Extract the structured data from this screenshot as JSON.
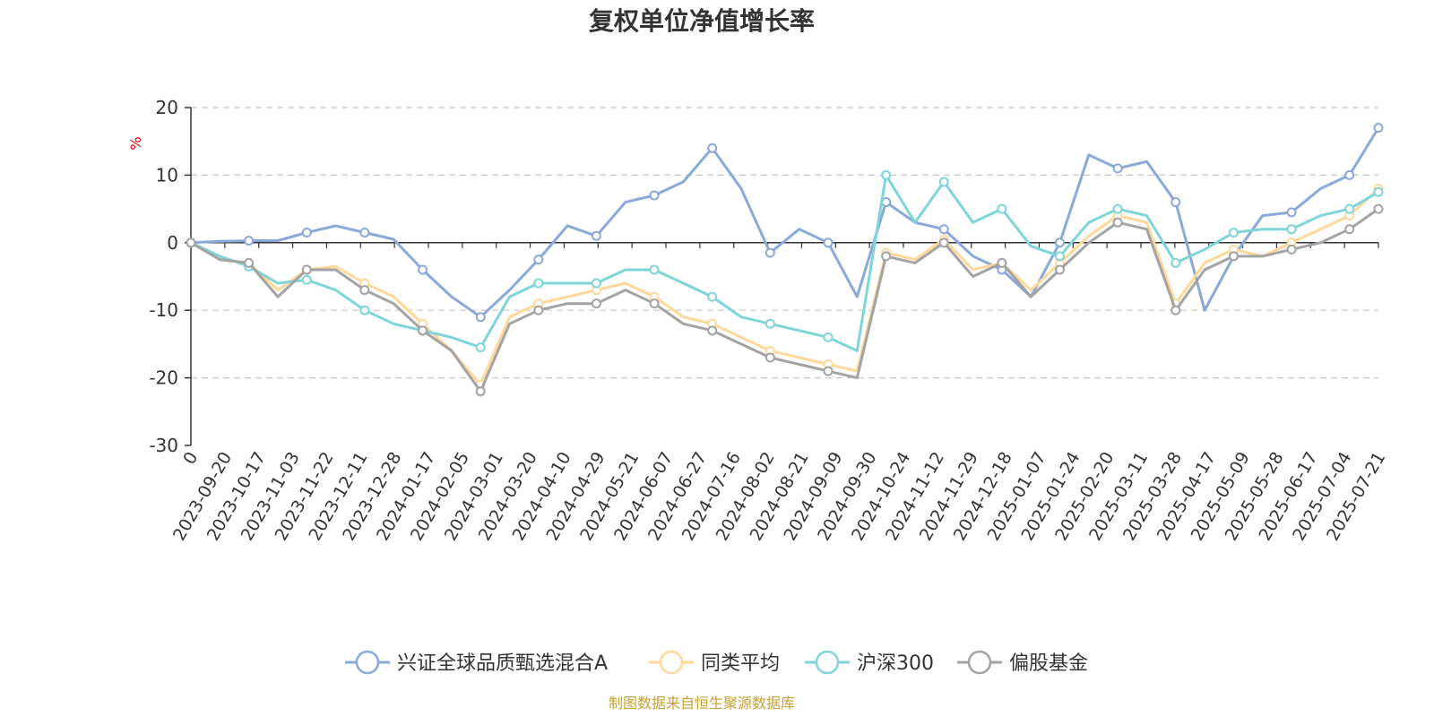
{
  "chart_data": {
    "type": "line",
    "title": "复权单位净值增长率",
    "ylabel": "%",
    "ylim": [
      -30,
      20
    ],
    "yticks": [
      -30,
      -20,
      -10,
      0,
      10,
      20
    ],
    "x_tick_labels": [
      "0",
      "2023-09-20",
      "2023-10-17",
      "2023-11-03",
      "2023-11-22",
      "2023-12-11",
      "2023-12-28",
      "2024-01-17",
      "2024-02-05",
      "2024-03-01",
      "2024-03-20",
      "2024-04-10",
      "2024-04-29",
      "2024-05-21",
      "2024-06-07",
      "2024-06-27",
      "2024-07-16",
      "2024-08-02",
      "2024-08-21",
      "2024-09-09",
      "2024-09-30",
      "2024-10-24",
      "2024-11-12",
      "2024-11-29",
      "2024-12-18",
      "2025-01-07",
      "2025-01-24",
      "2025-02-20",
      "2025-03-11",
      "2025-03-28",
      "2025-04-17",
      "2025-05-09",
      "2025-05-28",
      "2025-06-17",
      "2025-07-04",
      "2025-07-21"
    ],
    "grid": true,
    "legend_position": "bottom",
    "series": [
      {
        "name": "兴证全球品质甄选混合A",
        "color": "#8aa8d8",
        "values": [
          0,
          0.2,
          0.3,
          0.3,
          1.5,
          2.5,
          1.5,
          0.5,
          -4,
          -8,
          -11,
          -7,
          -2.5,
          2.5,
          1,
          6,
          7,
          9,
          14,
          8,
          -1.5,
          2,
          0,
          -8,
          6,
          3,
          2,
          -2,
          -4,
          -8,
          0,
          13,
          11,
          12,
          6,
          -10,
          -2,
          4,
          4.5,
          8,
          10,
          17
        ]
      },
      {
        "name": "同类平均",
        "color": "#ffd89a",
        "values": [
          0,
          -2.5,
          -3,
          -7,
          -4,
          -3.5,
          -6,
          -8,
          -12,
          -16,
          -21,
          -11,
          -9,
          -8,
          -7,
          -6,
          -8,
          -11,
          -12,
          -14,
          -16,
          -17,
          -18,
          -19,
          -1.5,
          -2.5,
          0.5,
          -4,
          -3,
          -7,
          -3,
          1,
          4,
          3,
          -9,
          -3,
          -1,
          -2,
          0,
          2,
          4,
          8
        ]
      },
      {
        "name": "沪深300",
        "color": "#7fd4d8",
        "values": [
          0,
          -2,
          -3.5,
          -6,
          -5.5,
          -7,
          -10,
          -12,
          -13,
          -14,
          -15.5,
          -8,
          -6,
          -6,
          -6,
          -4,
          -4,
          -6,
          -8,
          -11,
          -12,
          -13,
          -14,
          -16,
          10,
          3,
          9,
          3,
          5,
          -0.5,
          -2,
          3,
          5,
          4,
          -3,
          -1,
          1.5,
          2,
          2,
          4,
          5,
          7.5
        ]
      },
      {
        "name": "偏股基金",
        "color": "#a3a3a3",
        "values": [
          0,
          -2.5,
          -3,
          -8,
          -4,
          -4,
          -7,
          -9,
          -13,
          -16,
          -22,
          -12,
          -10,
          -9,
          -9,
          -7,
          -9,
          -12,
          -13,
          -15,
          -17,
          -18,
          -19,
          -20,
          -2,
          -3,
          0,
          -5,
          -3,
          -8,
          -4,
          0,
          3,
          2,
          -10,
          -4,
          -2,
          -2,
          -1,
          0,
          2,
          5
        ]
      }
    ]
  },
  "legend": {
    "items": [
      "兴证全球品质甄选混合A",
      "同类平均",
      "沪深300",
      "偏股基金"
    ]
  },
  "source_note": "制图数据来自恒生聚源数据库"
}
